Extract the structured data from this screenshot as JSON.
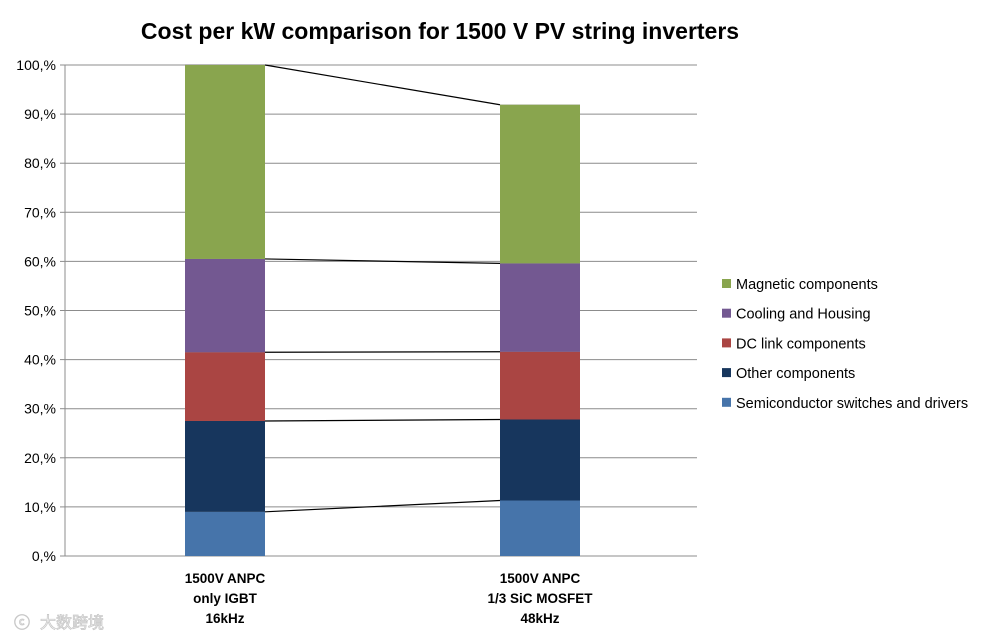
{
  "chart_data": {
    "type": "bar",
    "stacked": true,
    "title": "Cost per kW comparison for 1500 V PV string inverters",
    "xlabel": "",
    "ylabel": "",
    "ylim": [
      0,
      100
    ],
    "yticks": [
      "0,%",
      "10,%",
      "20,%",
      "30,%",
      "40,%",
      "50,%",
      "60,%",
      "70,%",
      "80,%",
      "90,%",
      "100,%"
    ],
    "grid": true,
    "legend_position": "right",
    "categories": [
      [
        "1500V ANPC",
        "only IGBT",
        "16kHz"
      ],
      [
        "1500V ANPC",
        "1/3 SiC MOSFET",
        "48kHz"
      ]
    ],
    "series": [
      {
        "name": "Semiconductor switches and drivers",
        "color": "#4674aa",
        "values": [
          9.0,
          11.3
        ]
      },
      {
        "name": "Other components",
        "color": "#17365d",
        "values": [
          18.5,
          16.5
        ]
      },
      {
        "name": "DC link components",
        "color": "#aa4543",
        "values": [
          14.0,
          13.8
        ]
      },
      {
        "name": "Cooling and Housing",
        "color": "#735891",
        "values": [
          19.0,
          18.0
        ]
      },
      {
        "name": "Magnetic components",
        "color": "#89a54e",
        "values": [
          39.5,
          32.3
        ]
      }
    ],
    "connector_lines": true
  },
  "watermark": "大数跨境"
}
